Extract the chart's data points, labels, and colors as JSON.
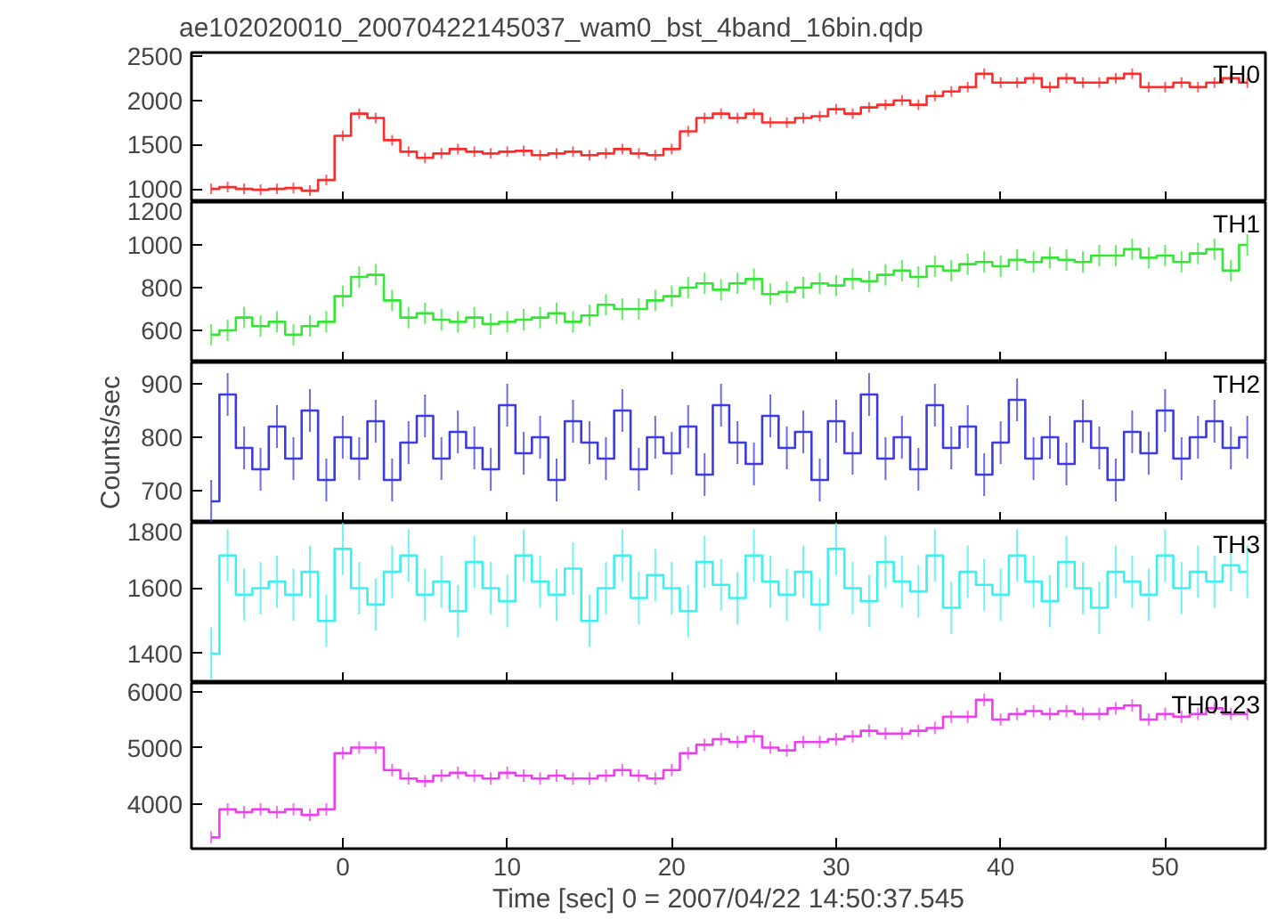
{
  "chart_data": [
    {
      "type": "step",
      "title": "ae102020010_20070422145037_wam0_bst_4band_16bin.qdp",
      "xlim": [
        -9.2,
        56.1
      ],
      "xticks": [
        0,
        10,
        20,
        30,
        40,
        50
      ],
      "ylim": [
        850,
        2540
      ],
      "yticks": [
        1000,
        1500,
        2000,
        2500
      ],
      "tick_labels": "y",
      "grid": false,
      "x": [
        -8,
        -7,
        -6,
        -5,
        -4,
        -3,
        -2,
        -1,
        0,
        1,
        2,
        3,
        4,
        5,
        6,
        7,
        8,
        9,
        10,
        11,
        12,
        13,
        14,
        15,
        16,
        17,
        18,
        19,
        20,
        21,
        22,
        23,
        24,
        25,
        26,
        27,
        28,
        29,
        30,
        31,
        32,
        33,
        34,
        35,
        36,
        37,
        38,
        39,
        40,
        41,
        42,
        43,
        44,
        45,
        46,
        47,
        48,
        49,
        50,
        51,
        52,
        53,
        54,
        55
      ],
      "series": [
        {
          "name": "TH0",
          "color": "#ff2a2a",
          "values": [
            1000,
            1020,
            1000,
            990,
            1000,
            1010,
            980,
            1100,
            1600,
            1850,
            1800,
            1550,
            1420,
            1350,
            1400,
            1450,
            1420,
            1400,
            1420,
            1430,
            1380,
            1400,
            1420,
            1380,
            1400,
            1450,
            1400,
            1380,
            1450,
            1650,
            1800,
            1850,
            1800,
            1850,
            1750,
            1750,
            1800,
            1820,
            1900,
            1850,
            1920,
            1950,
            2000,
            1950,
            2050,
            2100,
            2150,
            2300,
            2200,
            2200,
            2250,
            2150,
            2250,
            2200,
            2200,
            2250,
            2300,
            2150,
            2150,
            2200,
            2150,
            2200,
            2250,
            2200
          ],
          "errors": [
            60,
            60,
            60,
            60,
            60,
            60,
            60,
            60,
            60,
            60,
            60,
            60,
            60,
            60,
            60,
            60,
            60,
            60,
            60,
            60,
            60,
            60,
            60,
            60,
            60,
            60,
            60,
            60,
            60,
            60,
            60,
            60,
            60,
            60,
            60,
            60,
            60,
            60,
            60,
            60,
            60,
            60,
            60,
            60,
            60,
            60,
            60,
            60,
            60,
            60,
            60,
            60,
            60,
            60,
            60,
            60,
            60,
            60,
            60,
            60,
            60,
            60,
            60,
            60
          ]
        }
      ]
    },
    {
      "type": "step",
      "xlim": [
        -9.2,
        56.1
      ],
      "xticks": [
        0,
        10,
        20,
        30,
        40,
        50
      ],
      "ylim": [
        450,
        1200
      ],
      "yticks": [
        600,
        800,
        1000,
        1200
      ],
      "tick_labels": "y",
      "grid": false,
      "x": [
        -8,
        -7,
        -6,
        -5,
        -4,
        -3,
        -2,
        -1,
        0,
        1,
        2,
        3,
        4,
        5,
        6,
        7,
        8,
        9,
        10,
        11,
        12,
        13,
        14,
        15,
        16,
        17,
        18,
        19,
        20,
        21,
        22,
        23,
        24,
        25,
        26,
        27,
        28,
        29,
        30,
        31,
        32,
        33,
        34,
        35,
        36,
        37,
        38,
        39,
        40,
        41,
        42,
        43,
        44,
        45,
        46,
        47,
        48,
        49,
        50,
        51,
        52,
        53,
        54,
        55
      ],
      "series": [
        {
          "name": "TH1",
          "color": "#33e633",
          "values": [
            580,
            600,
            660,
            620,
            640,
            580,
            620,
            640,
            760,
            850,
            860,
            740,
            660,
            680,
            650,
            640,
            660,
            630,
            640,
            650,
            660,
            680,
            640,
            670,
            720,
            700,
            700,
            740,
            760,
            800,
            820,
            790,
            820,
            840,
            770,
            780,
            800,
            820,
            810,
            840,
            830,
            860,
            880,
            850,
            900,
            880,
            910,
            920,
            900,
            930,
            920,
            940,
            930,
            920,
            950,
            950,
            980,
            940,
            950,
            920,
            960,
            980,
            880,
            1000
          ],
          "errors": [
            50,
            50,
            50,
            50,
            50,
            50,
            50,
            50,
            50,
            50,
            50,
            50,
            50,
            50,
            50,
            50,
            50,
            50,
            50,
            50,
            50,
            50,
            50,
            50,
            50,
            50,
            50,
            50,
            50,
            50,
            50,
            50,
            50,
            50,
            50,
            50,
            50,
            50,
            50,
            50,
            50,
            50,
            50,
            50,
            50,
            50,
            50,
            50,
            50,
            50,
            50,
            50,
            50,
            50,
            50,
            50,
            50,
            50,
            50,
            50,
            50,
            50,
            50,
            50
          ]
        }
      ]
    },
    {
      "type": "step",
      "ylabel": "Counts/sec",
      "xlim": [
        -9.2,
        56.1
      ],
      "xticks": [
        0,
        10,
        20,
        30,
        40,
        50
      ],
      "ylim": [
        640,
        940
      ],
      "yticks": [
        700,
        800,
        900
      ],
      "tick_labels": "y",
      "grid": false,
      "x": [
        -8,
        -7,
        -6,
        -5,
        -4,
        -3,
        -2,
        -1,
        0,
        1,
        2,
        3,
        4,
        5,
        6,
        7,
        8,
        9,
        10,
        11,
        12,
        13,
        14,
        15,
        16,
        17,
        18,
        19,
        20,
        21,
        22,
        23,
        24,
        25,
        26,
        27,
        28,
        29,
        30,
        31,
        32,
        33,
        34,
        35,
        36,
        37,
        38,
        39,
        40,
        41,
        42,
        43,
        44,
        45,
        46,
        47,
        48,
        49,
        50,
        51,
        52,
        53,
        54,
        55
      ],
      "series": [
        {
          "name": "TH2",
          "color": "#3b3be0",
          "values": [
            680,
            880,
            780,
            740,
            820,
            760,
            850,
            720,
            800,
            760,
            830,
            720,
            790,
            840,
            760,
            810,
            780,
            740,
            860,
            770,
            800,
            720,
            830,
            790,
            760,
            850,
            740,
            800,
            770,
            820,
            730,
            860,
            790,
            750,
            840,
            780,
            810,
            720,
            830,
            770,
            880,
            760,
            800,
            740,
            860,
            780,
            820,
            730,
            790,
            870,
            760,
            800,
            750,
            830,
            780,
            720,
            810,
            770,
            850,
            760,
            800,
            830,
            780,
            800
          ],
          "errors": [
            40,
            40,
            40,
            40,
            40,
            40,
            40,
            40,
            40,
            40,
            40,
            40,
            40,
            40,
            40,
            40,
            40,
            40,
            40,
            40,
            40,
            40,
            40,
            40,
            40,
            40,
            40,
            40,
            40,
            40,
            40,
            40,
            40,
            40,
            40,
            40,
            40,
            40,
            40,
            40,
            40,
            40,
            40,
            40,
            40,
            40,
            40,
            40,
            40,
            40,
            40,
            40,
            40,
            40,
            40,
            40,
            40,
            40,
            40,
            40,
            40,
            40,
            40,
            40
          ]
        }
      ]
    },
    {
      "type": "step",
      "xlim": [
        -9.2,
        56.1
      ],
      "xticks": [
        0,
        10,
        20,
        30,
        40,
        50
      ],
      "ylim": [
        1310,
        1800
      ],
      "yticks": [
        1400,
        1600,
        1800
      ],
      "tick_labels": "y",
      "grid": false,
      "x": [
        -8,
        -7,
        -6,
        -5,
        -4,
        -3,
        -2,
        -1,
        0,
        1,
        2,
        3,
        4,
        5,
        6,
        7,
        8,
        9,
        10,
        11,
        12,
        13,
        14,
        15,
        16,
        17,
        18,
        19,
        20,
        21,
        22,
        23,
        24,
        25,
        26,
        27,
        28,
        29,
        30,
        31,
        32,
        33,
        34,
        35,
        36,
        37,
        38,
        39,
        40,
        41,
        42,
        43,
        44,
        45,
        46,
        47,
        48,
        49,
        50,
        51,
        52,
        53,
        54,
        55
      ],
      "series": [
        {
          "name": "TH3",
          "color": "#3cf0f0",
          "values": [
            1400,
            1700,
            1580,
            1600,
            1620,
            1580,
            1650,
            1500,
            1720,
            1600,
            1550,
            1650,
            1700,
            1580,
            1620,
            1530,
            1680,
            1600,
            1560,
            1700,
            1620,
            1580,
            1660,
            1500,
            1600,
            1700,
            1570,
            1640,
            1600,
            1530,
            1680,
            1610,
            1570,
            1700,
            1620,
            1580,
            1650,
            1550,
            1720,
            1600,
            1560,
            1680,
            1620,
            1590,
            1700,
            1540,
            1650,
            1610,
            1580,
            1700,
            1620,
            1560,
            1680,
            1600,
            1540,
            1650,
            1620,
            1580,
            1700,
            1600,
            1650,
            1620,
            1670,
            1650
          ],
          "errors": [
            80,
            80,
            80,
            80,
            80,
            80,
            80,
            80,
            80,
            80,
            80,
            80,
            80,
            80,
            80,
            80,
            80,
            80,
            80,
            80,
            80,
            80,
            80,
            80,
            80,
            80,
            80,
            80,
            80,
            80,
            80,
            80,
            80,
            80,
            80,
            80,
            80,
            80,
            80,
            80,
            80,
            80,
            80,
            80,
            80,
            80,
            80,
            80,
            80,
            80,
            80,
            80,
            80,
            80,
            80,
            80,
            80,
            80,
            80,
            80,
            80,
            80,
            80,
            80
          ]
        }
      ]
    },
    {
      "type": "step",
      "xlabel": "Time [sec] 0 = 2007/04/22 14:50:37.545",
      "xlim": [
        -9.2,
        56.1
      ],
      "xticks": [
        0,
        10,
        20,
        30,
        40,
        50
      ],
      "ylim": [
        3200,
        6150
      ],
      "yticks": [
        4000,
        5000,
        6000
      ],
      "grid": false,
      "x": [
        -8,
        -7,
        -6,
        -5,
        -4,
        -3,
        -2,
        -1,
        0,
        1,
        2,
        3,
        4,
        5,
        6,
        7,
        8,
        9,
        10,
        11,
        12,
        13,
        14,
        15,
        16,
        17,
        18,
        19,
        20,
        21,
        22,
        23,
        24,
        25,
        26,
        27,
        28,
        29,
        30,
        31,
        32,
        33,
        34,
        35,
        36,
        37,
        38,
        39,
        40,
        41,
        42,
        43,
        44,
        45,
        46,
        47,
        48,
        49,
        50,
        51,
        52,
        53,
        54,
        55
      ],
      "series": [
        {
          "name": "TH0123",
          "color": "#f03cf0",
          "values": [
            3400,
            3900,
            3850,
            3900,
            3850,
            3900,
            3800,
            3900,
            4900,
            5000,
            5000,
            4600,
            4450,
            4400,
            4500,
            4550,
            4500,
            4450,
            4550,
            4500,
            4450,
            4500,
            4450,
            4450,
            4500,
            4600,
            4500,
            4450,
            4600,
            4900,
            5050,
            5150,
            5100,
            5200,
            5000,
            4950,
            5100,
            5100,
            5150,
            5200,
            5300,
            5250,
            5250,
            5300,
            5350,
            5550,
            5550,
            5850,
            5500,
            5600,
            5650,
            5600,
            5650,
            5600,
            5600,
            5700,
            5750,
            5500,
            5600,
            5550,
            5600,
            5700,
            5600,
            5600
          ],
          "errors": [
            110,
            110,
            110,
            110,
            110,
            110,
            110,
            110,
            110,
            110,
            110,
            110,
            110,
            110,
            110,
            110,
            110,
            110,
            110,
            110,
            110,
            110,
            110,
            110,
            110,
            110,
            110,
            110,
            110,
            110,
            110,
            110,
            110,
            110,
            110,
            110,
            110,
            110,
            110,
            110,
            110,
            110,
            110,
            110,
            110,
            110,
            110,
            110,
            110,
            110,
            110,
            110,
            110,
            110,
            110,
            110,
            110,
            110,
            110,
            110,
            110,
            110,
            110,
            110
          ]
        }
      ]
    }
  ]
}
